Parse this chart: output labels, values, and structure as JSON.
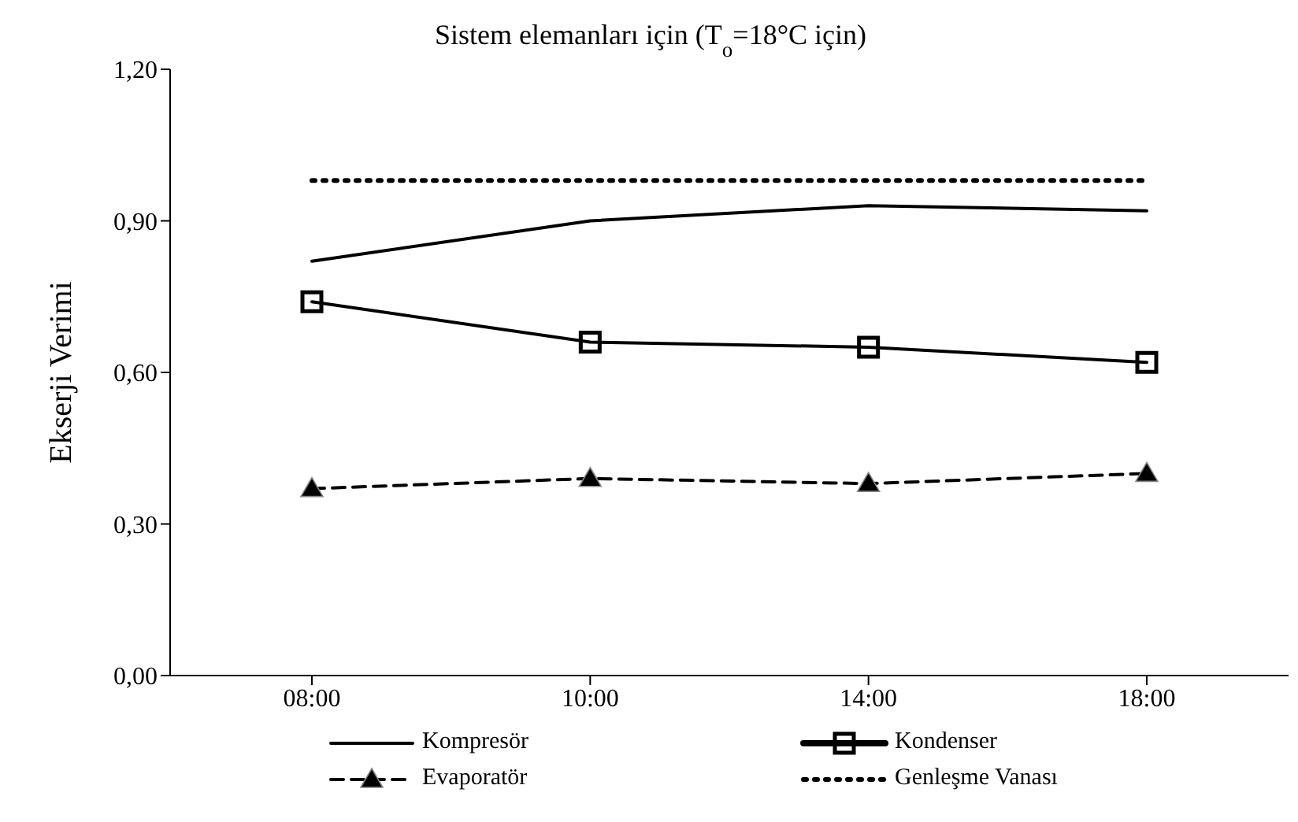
{
  "chart_data": {
    "type": "line",
    "title": "Sistem elemanları için (T$_{o}$=18°C  için)",
    "ylabel": "Ekserji Verimi",
    "categories": [
      "08:00",
      "10:00",
      "14:00",
      "18:00"
    ],
    "ylim": [
      0,
      1.2
    ],
    "yticks": [
      {
        "value": 0,
        "label": "0,00"
      },
      {
        "value": 0.3,
        "label": "0,30"
      },
      {
        "value": 0.6,
        "label": "0,60"
      },
      {
        "value": 0.9,
        "label": "0,90"
      },
      {
        "value": 1.2,
        "label": "1,20"
      }
    ],
    "legend": "bottom",
    "series": [
      {
        "name": "Kompresör",
        "color": "#000000",
        "values": [
          0.82,
          0.9,
          0.93,
          0.92
        ],
        "marker": "none",
        "line_style": "solid"
      },
      {
        "name": "Kondenser",
        "color": "#000000",
        "values": [
          0.74,
          0.66,
          0.65,
          0.62
        ],
        "marker": "square",
        "line_style": "solid"
      },
      {
        "name": "Evaporatör",
        "color": "#000000",
        "values": [
          0.37,
          0.39,
          0.38,
          0.4
        ],
        "marker": "triangle",
        "line_style": "dashed"
      },
      {
        "name": "Genleşme Vanası",
        "color": "#000000",
        "values": [
          0.98,
          0.98,
          0.98,
          0.98
        ],
        "marker": "none",
        "line_style": "dotted"
      }
    ]
  }
}
